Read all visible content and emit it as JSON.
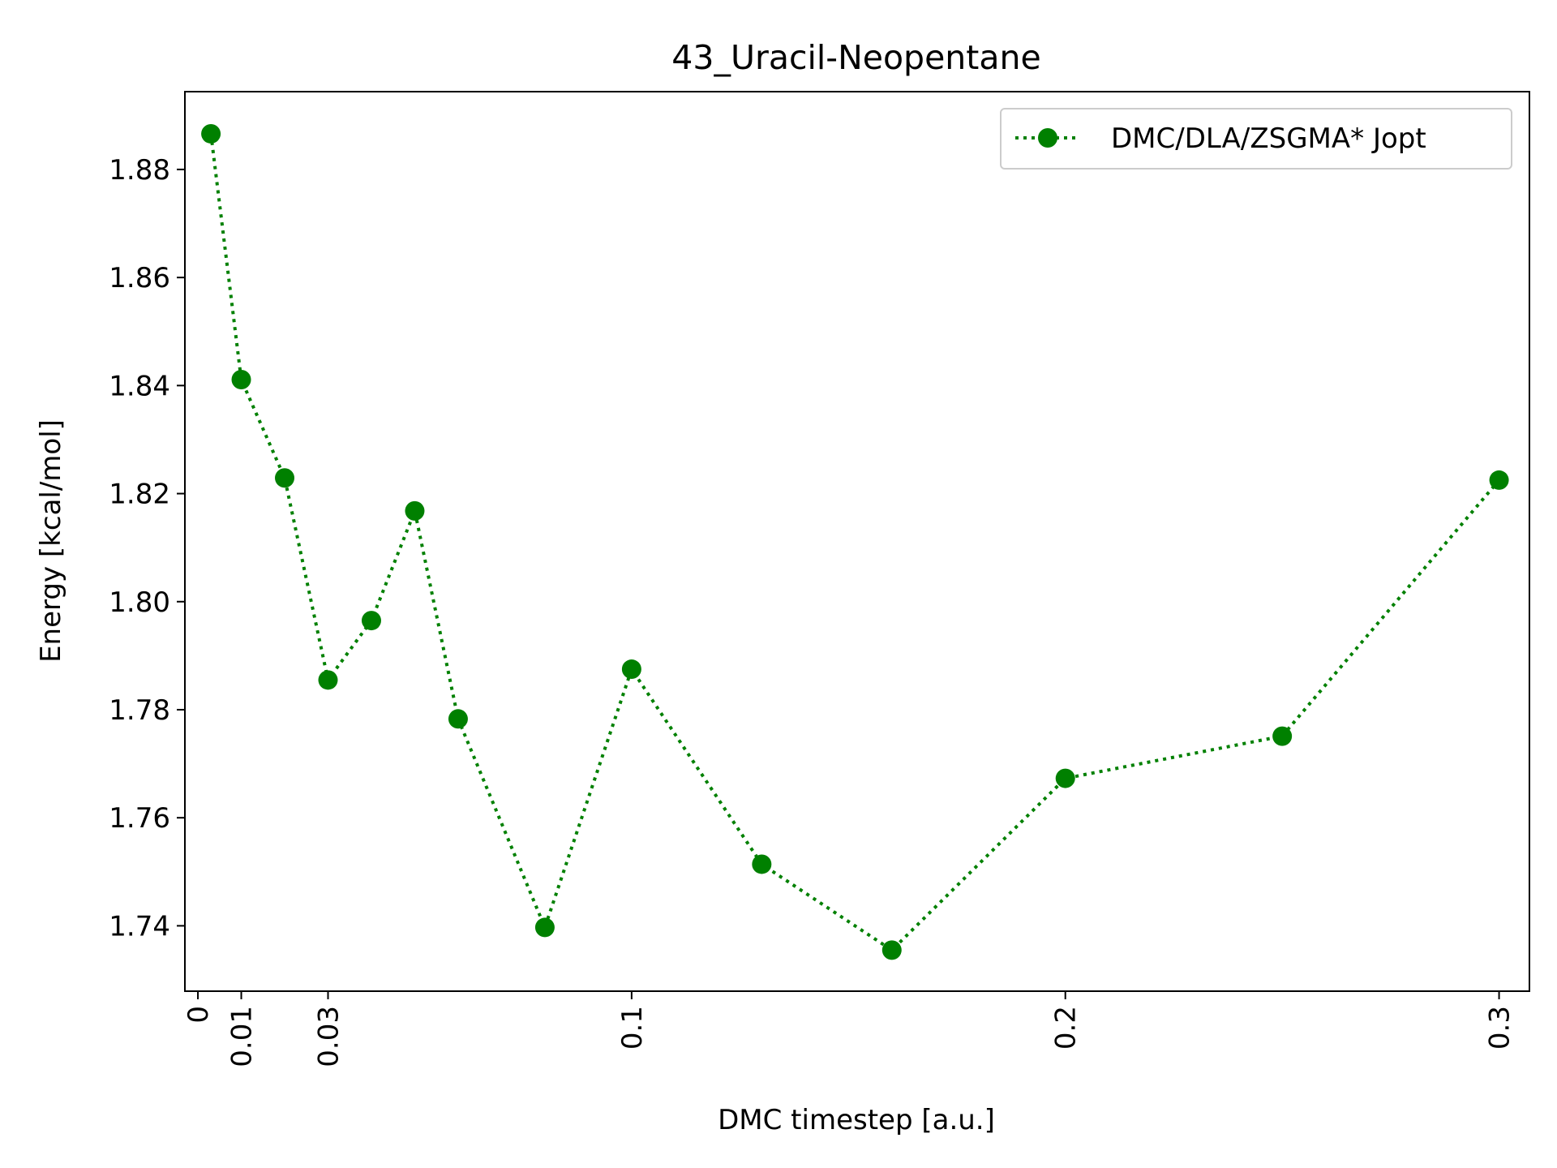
{
  "chart_data": {
    "type": "line",
    "title": "43_Uracil-Neopentane",
    "xlabel": "DMC timestep [a.u.]",
    "ylabel": "Energy [kcal/mol]",
    "xlim": [
      -0.003,
      0.307
    ],
    "ylim": [
      1.7279,
      1.8944
    ],
    "xticks": [
      0,
      0.01,
      0.03,
      0.1,
      0.2,
      0.3
    ],
    "xtick_labels": [
      "0",
      "0.01",
      "0.03",
      "0.1",
      "0.2",
      "0.3"
    ],
    "yticks": [
      1.74,
      1.76,
      1.78,
      1.8,
      1.82,
      1.84,
      1.86,
      1.88
    ],
    "ytick_labels": [
      "1.74",
      "1.76",
      "1.78",
      "1.80",
      "1.82",
      "1.84",
      "1.86",
      "1.88"
    ],
    "grid": false,
    "legend_position": "top-right",
    "series": [
      {
        "name": "DMC/DLA/ZSGMA* Jopt",
        "color": "#008000",
        "line_style": "dotted",
        "marker": "circle",
        "x": [
          0.003,
          0.01,
          0.02,
          0.03,
          0.04,
          0.05,
          0.06,
          0.08,
          0.1,
          0.13,
          0.16,
          0.2,
          0.25,
          0.3
        ],
        "y": [
          1.8866,
          1.8411,
          1.8229,
          1.7855,
          1.7965,
          1.8168,
          1.7783,
          1.7397,
          1.7875,
          1.7514,
          1.7355,
          1.7673,
          1.7751,
          1.8225
        ]
      }
    ]
  }
}
